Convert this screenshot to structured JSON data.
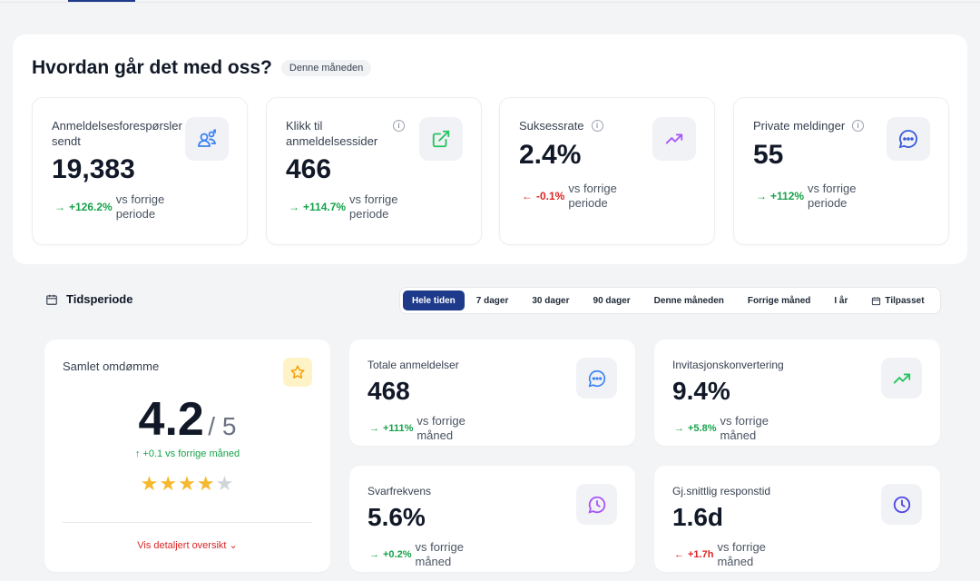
{
  "header": {
    "title": "Hvordan går det med oss?",
    "badge": "Denne måneden"
  },
  "kpis": [
    {
      "label": "Anmeldelsesforespørsler sendt",
      "value": "19,383",
      "delta": "+126.2%",
      "delta_text": "vs forrige periode",
      "trend": "up",
      "icon": "users-icon"
    },
    {
      "label": "Klikk til anmeldelsessider",
      "value": "466",
      "delta": "+114.7%",
      "delta_text": "vs forrige periode",
      "trend": "up",
      "icon": "external-link-icon"
    },
    {
      "label": "Suksessrate",
      "value": "2.4%",
      "delta": "-0.1%",
      "delta_text": "vs forrige periode",
      "trend": "down",
      "icon": "trending-up-icon"
    },
    {
      "label": "Private meldinger",
      "value": "55",
      "delta": "+112%",
      "delta_text": "vs forrige periode",
      "trend": "up",
      "icon": "message-icon"
    }
  ],
  "period": {
    "label": "Tidsperiode",
    "tabs": [
      "Hele tiden",
      "7 dager",
      "30 dager",
      "90 dager",
      "Denne måneden",
      "Forrige måned",
      "I år",
      "Tilpasset"
    ],
    "active": "Hele tiden"
  },
  "reputation": {
    "title": "Samlet omdømme",
    "score": "4.2",
    "of": "/ 5",
    "change": "↑ +0.1 vs forrige måned",
    "stars": 4,
    "link": "Vis detaljert oversikt"
  },
  "stats": [
    {
      "title": "Totale anmeldelser",
      "value": "468",
      "delta": "+111%",
      "delta_text": "vs forrige måned",
      "trend": "up",
      "icon": "message-icon"
    },
    {
      "title": "Invitasjonskonvertering",
      "value": "9.4%",
      "delta": "+5.8%",
      "delta_text": "vs forrige måned",
      "trend": "up",
      "icon": "trending-up-icon"
    },
    {
      "title": "Svarfrekvens",
      "value": "5.6%",
      "delta": "+0.2%",
      "delta_text": "vs forrige måned",
      "trend": "up",
      "icon": "reply-clock-icon"
    },
    {
      "title": "Gj.snittlig responstid",
      "value": "1.6d",
      "delta": "+1.7h",
      "delta_text": "vs forrige måned",
      "trend": "down",
      "icon": "clock-icon"
    }
  ],
  "colors": {
    "accent": "#1e3a8a",
    "positive": "#16a34a",
    "negative": "#dc2626",
    "star": "#f5b82e"
  }
}
